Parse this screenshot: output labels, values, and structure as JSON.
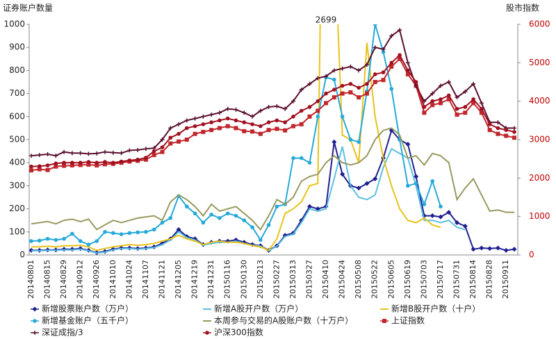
{
  "chart_data": {
    "type": "line",
    "y_title": "证券账户数量",
    "y2_title": "股市指数",
    "annotation": {
      "text": "2699",
      "index": 36
    },
    "categories": [
      "20140801",
      null,
      "20140815",
      null,
      "20140829",
      null,
      "20140912",
      null,
      "20140926",
      null,
      "20141010",
      null,
      "20141024",
      null,
      "20141107",
      null,
      "20141121",
      null,
      "20141205",
      null,
      "20141219",
      null,
      "20141231",
      null,
      "20150116",
      null,
      "20150130",
      null,
      "20150213",
      null,
      "20150227",
      null,
      "20150313",
      null,
      "20150327",
      null,
      "20150410",
      null,
      "20150424",
      null,
      "20150508",
      null,
      "20150522",
      null,
      "20150605",
      null,
      "20150619",
      null,
      "20150703",
      null,
      "20150717",
      null,
      "20150731",
      null,
      "20150814",
      null,
      "20150828",
      null,
      "20150911",
      null
    ],
    "ylim": [
      0,
      1000
    ],
    "yticks": [
      0,
      100,
      200,
      300,
      400,
      500,
      600,
      700,
      800,
      900,
      1000
    ],
    "y2lim": [
      0,
      6000
    ],
    "y2ticks": [
      0,
      1000,
      2000,
      3000,
      4000,
      5000,
      6000
    ],
    "y2_color": "#c00000",
    "series": [
      {
        "name": "新增股票账户数（万户）",
        "color": "#1f1f8f",
        "marker": "diamond",
        "values": [
          20,
          20,
          22,
          22,
          25,
          25,
          28,
          20,
          10,
          15,
          25,
          30,
          30,
          28,
          30,
          35,
          50,
          70,
          110,
          80,
          70,
          45,
          55,
          60,
          60,
          65,
          55,
          45,
          40,
          20,
          40,
          85,
          95,
          150,
          210,
          200,
          210,
          490,
          350,
          300,
          290,
          310,
          330,
          420,
          540,
          500,
          480,
          340,
          170,
          170,
          165,
          185,
          140,
          125,
          25,
          30,
          28,
          30,
          20,
          25
        ]
      },
      {
        "name": "新增A股开户数（万户）",
        "color": "#5bbfe0",
        "marker": "none",
        "values": [
          18,
          18,
          20,
          20,
          22,
          22,
          25,
          18,
          8,
          12,
          22,
          28,
          28,
          25,
          28,
          32,
          45,
          65,
          100,
          75,
          65,
          42,
          50,
          55,
          55,
          60,
          50,
          42,
          38,
          18,
          38,
          80,
          90,
          140,
          200,
          190,
          200,
          330,
          470,
          300,
          250,
          240,
          260,
          380,
          460,
          440,
          420,
          300,
          150,
          150,
          140,
          150,
          120,
          110,
          null,
          null,
          null,
          null,
          null,
          null
        ]
      },
      {
        "name": "新增B股开户数（十户）",
        "color": "#e8c21a",
        "marker": "none",
        "values": [
          35,
          35,
          38,
          35,
          40,
          40,
          42,
          35,
          20,
          28,
          35,
          40,
          45,
          42,
          45,
          50,
          60,
          70,
          85,
          70,
          60,
          45,
          55,
          60,
          55,
          55,
          50,
          40,
          35,
          20,
          70,
          180,
          200,
          230,
          300,
          310,
          2699,
          1400,
          520,
          500,
          400,
          920,
          600,
          420,
          300,
          200,
          150,
          140,
          160,
          130,
          120,
          null,
          null,
          null,
          null,
          null,
          null,
          null,
          null,
          null
        ]
      },
      {
        "name": "新增基金账户（五千户）",
        "color": "#26a9d9",
        "marker": "circle",
        "values": [
          60,
          62,
          70,
          65,
          70,
          92,
          60,
          45,
          60,
          100,
          95,
          90,
          95,
          98,
          100,
          110,
          140,
          160,
          255,
          210,
          180,
          140,
          175,
          160,
          180,
          170,
          150,
          120,
          65,
          130,
          210,
          220,
          420,
          420,
          400,
          600,
          770,
          760,
          600,
          500,
          490,
          710,
          1000,
          880,
          720,
          500,
          300,
          310,
          220,
          320,
          210,
          null,
          null,
          null,
          null,
          null,
          null,
          null,
          null,
          null
        ]
      },
      {
        "name": "本周参与交易的A股账户数（十万户）",
        "color": "#999960",
        "marker": "none",
        "values": [
          135,
          140,
          145,
          135,
          150,
          155,
          145,
          155,
          110,
          130,
          150,
          140,
          150,
          160,
          165,
          170,
          150,
          230,
          260,
          240,
          210,
          170,
          220,
          190,
          200,
          210,
          180,
          150,
          110,
          170,
          240,
          220,
          250,
          320,
          340,
          350,
          400,
          430,
          400,
          390,
          400,
          430,
          500,
          540,
          550,
          520,
          420,
          430,
          390,
          440,
          430,
          400,
          240,
          290,
          330,
          260,
          190,
          195,
          185,
          185
        ]
      },
      {
        "name": "上证指数",
        "color": "#c0272d",
        "marker": "square",
        "axis": "y2",
        "values": [
          2200,
          2230,
          2210,
          2300,
          2320,
          2330,
          2340,
          2350,
          2330,
          2360,
          2370,
          2400,
          2430,
          2450,
          2480,
          2600,
          2680,
          2900,
          2950,
          3000,
          3150,
          3200,
          3250,
          3300,
          3350,
          3300,
          3220,
          3210,
          3150,
          3250,
          3280,
          3240,
          3350,
          3400,
          3600,
          3750,
          3950,
          4100,
          4200,
          4230,
          4100,
          4200,
          4500,
          4550,
          4900,
          5100,
          4700,
          4400,
          3700,
          3900,
          3950,
          4050,
          3650,
          3700,
          3950,
          3700,
          3250,
          3150,
          3100,
          3050
        ]
      },
      {
        "name": "深证成指/3",
        "color": "#5a1030",
        "marker": "plus",
        "axis": "y2",
        "values": [
          2580,
          2600,
          2620,
          2580,
          2680,
          2650,
          2650,
          2630,
          2640,
          2680,
          2660,
          2650,
          2720,
          2730,
          2760,
          2780,
          3000,
          3300,
          3400,
          3500,
          3550,
          3600,
          3650,
          3700,
          3800,
          3780,
          3700,
          3600,
          3750,
          3850,
          3870,
          3800,
          4000,
          4300,
          4450,
          4600,
          4650,
          4800,
          4850,
          4900,
          4800,
          4950,
          5400,
          5350,
          5700,
          5850,
          5000,
          4400,
          4000,
          4200,
          4400,
          4500,
          4100,
          4250,
          4450,
          3950,
          3450,
          3450,
          3300,
          3300
        ]
      },
      {
        "name": "沪深300指数",
        "color": "#a01020",
        "marker": "circle",
        "axis": "y2",
        "values": [
          2300,
          2310,
          2330,
          2380,
          2400,
          2400,
          2400,
          2420,
          2400,
          2420,
          2400,
          2430,
          2460,
          2480,
          2530,
          2700,
          2800,
          3050,
          3150,
          3300,
          3350,
          3400,
          3450,
          3500,
          3550,
          3500,
          3450,
          3400,
          3350,
          3450,
          3500,
          3450,
          3600,
          3750,
          3850,
          4000,
          4200,
          4300,
          4400,
          4450,
          4350,
          4450,
          4700,
          4750,
          5000,
          5200,
          4800,
          4500,
          3850,
          4000,
          4050,
          4150,
          3800,
          3850,
          4050,
          3800,
          3400,
          3300,
          3250,
          3200
        ]
      }
    ]
  }
}
